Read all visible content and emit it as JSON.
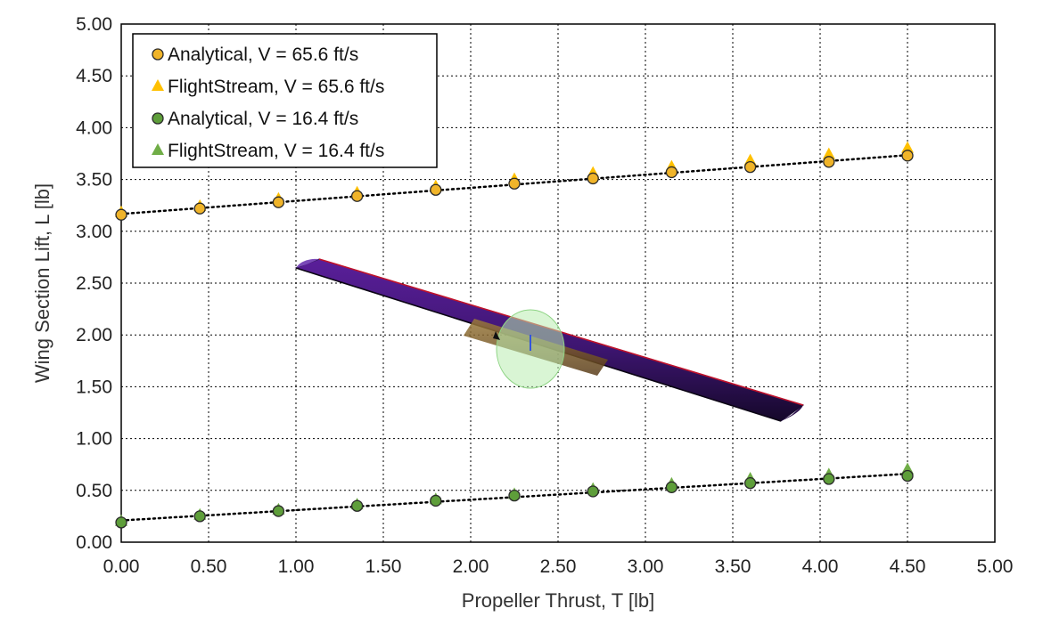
{
  "chart_data": {
    "type": "scatter",
    "xlabel": "Propeller Thrust, T [lb]",
    "ylabel": "Wing Section Lift, L [lb]",
    "xlim": [
      0,
      5
    ],
    "ylim": [
      0,
      5
    ],
    "x_ticks": [
      "0.00",
      "0.50",
      "1.00",
      "1.50",
      "2.00",
      "2.50",
      "3.00",
      "3.50",
      "4.00",
      "4.50",
      "5.00"
    ],
    "y_ticks": [
      "0.00",
      "0.50",
      "1.00",
      "1.50",
      "2.00",
      "2.50",
      "3.00",
      "3.50",
      "4.00",
      "4.50",
      "5.00"
    ],
    "grid": true,
    "legend_position": "top-left",
    "x": [
      0.0,
      0.45,
      0.9,
      1.35,
      1.8,
      2.25,
      2.7,
      3.15,
      3.6,
      4.05,
      4.5
    ],
    "series": [
      {
        "name": "Analytical, V = 65.6 ft/s",
        "marker": "circle",
        "color": "#F0B429",
        "values": [
          3.16,
          3.22,
          3.28,
          3.34,
          3.4,
          3.46,
          3.51,
          3.57,
          3.62,
          3.67,
          3.73
        ]
      },
      {
        "name": "FlightStream, V = 65.6 ft/s",
        "marker": "triangle",
        "color": "#FFC000",
        "values": [
          3.18,
          3.24,
          3.31,
          3.37,
          3.43,
          3.5,
          3.56,
          3.62,
          3.68,
          3.74,
          3.8
        ]
      },
      {
        "name": "Analytical, V = 16.4 ft/s",
        "marker": "circle",
        "color": "#5E9E3A",
        "values": [
          0.19,
          0.25,
          0.3,
          0.35,
          0.4,
          0.45,
          0.49,
          0.53,
          0.57,
          0.61,
          0.64
        ]
      },
      {
        "name": "FlightStream, V = 16.4 ft/s",
        "marker": "triangle",
        "color": "#70AD47",
        "values": [
          0.2,
          0.26,
          0.31,
          0.36,
          0.41,
          0.46,
          0.51,
          0.56,
          0.61,
          0.65,
          0.7
        ]
      }
    ],
    "trendlines": [
      {
        "series": "Analytical, V = 65.6 ft/s",
        "style": "dotted",
        "color": "#000000"
      },
      {
        "series": "Analytical, V = 16.4 ft/s",
        "style": "dotted",
        "color": "#000000"
      }
    ],
    "inset_image": "wing-section-with-propeller-disk"
  }
}
